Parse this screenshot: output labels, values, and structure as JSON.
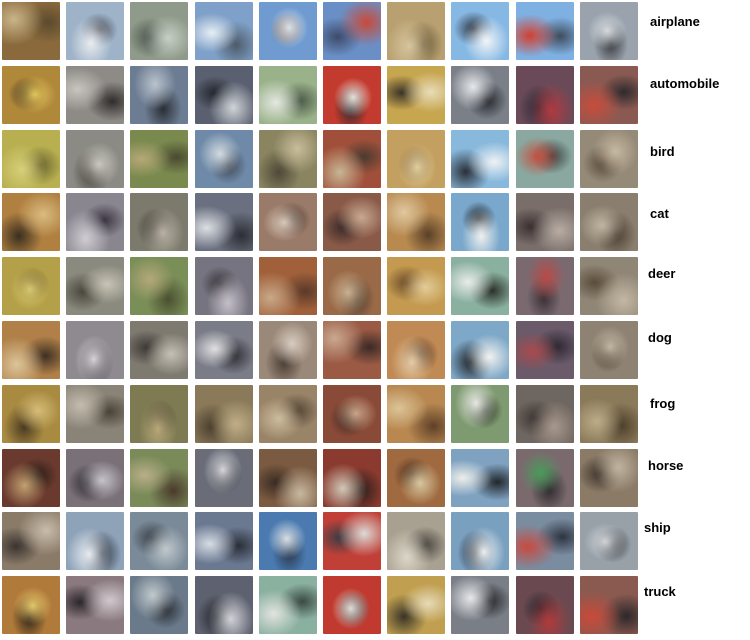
{
  "rows": [
    {
      "class_label": "airplane",
      "tiles": [
        {
          "c1": "#8a6a3c",
          "c2": "#c9b48a",
          "c3": "#5b4a2e"
        },
        {
          "c1": "#9eb2c8",
          "c2": "#e8ecef",
          "c3": "#4c4f58"
        },
        {
          "c1": "#8f9a8a",
          "c2": "#c7cfc6",
          "c3": "#4d5750"
        },
        {
          "c1": "#7fa0c8",
          "c2": "#e6eef4",
          "c3": "#4e5b6a"
        },
        {
          "c1": "#6f9bd0",
          "c2": "#d9e3ec",
          "c3": "#8a5a3a"
        },
        {
          "c1": "#6a8fc6",
          "c2": "#c94a3a",
          "c3": "#3d4a6a"
        },
        {
          "c1": "#b8a070",
          "c2": "#d7c59d",
          "c3": "#6a5a3a"
        },
        {
          "c1": "#86b8e4",
          "c2": "#f2f5f7",
          "c3": "#2f3540"
        },
        {
          "c1": "#7fb0e2",
          "c2": "#d04030",
          "c3": "#3e4c5c"
        },
        {
          "c1": "#9aa3ad",
          "c2": "#d5dadf",
          "c3": "#3a3c40"
        }
      ]
    },
    {
      "class_label": "automobile",
      "tiles": [
        {
          "c1": "#b0883a",
          "c2": "#e2c45a",
          "c3": "#3a2e1e"
        },
        {
          "c1": "#8e8a86",
          "c2": "#c8c4be",
          "c3": "#2f2d2c"
        },
        {
          "c1": "#6c7c92",
          "c2": "#b9c3cd",
          "c3": "#2a2e36"
        },
        {
          "c1": "#5a6070",
          "c2": "#d0d4d8",
          "c3": "#22252c"
        },
        {
          "c1": "#9ab28a",
          "c2": "#e4e7e0",
          "c3": "#4b5a48"
        },
        {
          "c1": "#c33a2e",
          "c2": "#e2e0da",
          "c3": "#2a2c30"
        },
        {
          "c1": "#c7a650",
          "c2": "#e8dcb8",
          "c3": "#3b3428"
        },
        {
          "c1": "#7a7f88",
          "c2": "#e6e8ea",
          "c3": "#24262b"
        },
        {
          "c1": "#6a4a58",
          "c2": "#b23a40",
          "c3": "#2a2a35"
        },
        {
          "c1": "#8a5a52",
          "c2": "#c84c3c",
          "c3": "#2e2a2c"
        }
      ]
    },
    {
      "class_label": "bird",
      "tiles": [
        {
          "c1": "#b8b050",
          "c2": "#d7cf7a",
          "c3": "#6a6430"
        },
        {
          "c1": "#8c8a84",
          "c2": "#c9c7bf",
          "c3": "#4a4640"
        },
        {
          "c1": "#7a8a4e",
          "c2": "#b6a878",
          "c3": "#4a4a30"
        },
        {
          "c1": "#6f8aa8",
          "c2": "#d2dbe2",
          "c3": "#3e4450"
        },
        {
          "c1": "#8a8460",
          "c2": "#c9bd9a",
          "c3": "#4e4838"
        },
        {
          "c1": "#a0503a",
          "c2": "#c7b594",
          "c3": "#4a3a30"
        },
        {
          "c1": "#c4a060",
          "c2": "#e0cfa0",
          "c3": "#7a5a30"
        },
        {
          "c1": "#88b8dc",
          "c2": "#eef2f4",
          "c3": "#2a3038"
        },
        {
          "c1": "#8aa8a0",
          "c2": "#c45040",
          "c3": "#3a4040"
        },
        {
          "c1": "#958a78",
          "c2": "#c6b8a0",
          "c3": "#5a4a3a"
        }
      ]
    },
    {
      "class_label": "cat",
      "tiles": [
        {
          "c1": "#b08040",
          "c2": "#d9bb80",
          "c3": "#3a2e20"
        },
        {
          "c1": "#8a8690",
          "c2": "#d0ccd2",
          "c3": "#3a3440"
        },
        {
          "c1": "#7c7a6c",
          "c2": "#b8b2a4",
          "c3": "#3e3a34"
        },
        {
          "c1": "#6a7080",
          "c2": "#dcdfe3",
          "c3": "#2c2e34"
        },
        {
          "c1": "#9a7a68",
          "c2": "#d8c8b8",
          "c3": "#4a3a34"
        },
        {
          "c1": "#8a5a48",
          "c2": "#c8a890",
          "c3": "#3a2a28"
        },
        {
          "c1": "#b88a50",
          "c2": "#e0c8a0",
          "c3": "#5a4028"
        },
        {
          "c1": "#7aa8cc",
          "c2": "#f0f0ee",
          "c3": "#1e2024"
        },
        {
          "c1": "#7a6e6a",
          "c2": "#b8aca4",
          "c3": "#3a3030"
        },
        {
          "c1": "#8a7e6e",
          "c2": "#c0b4a2",
          "c3": "#4a3e32"
        }
      ]
    },
    {
      "class_label": "deer",
      "tiles": [
        {
          "c1": "#b4a048",
          "c2": "#d8c870",
          "c3": "#6a5a2a"
        },
        {
          "c1": "#8a8a7e",
          "c2": "#c8c4b6",
          "c3": "#4a463e"
        },
        {
          "c1": "#7a8e58",
          "c2": "#b4a878",
          "c3": "#4a5030"
        },
        {
          "c1": "#767480",
          "c2": "#c4bec8",
          "c3": "#3a363c"
        },
        {
          "c1": "#a0603a",
          "c2": "#c8a888",
          "c3": "#5a3a2a"
        },
        {
          "c1": "#9a6a48",
          "c2": "#c9b090",
          "c3": "#4a3a2c"
        },
        {
          "c1": "#c49a50",
          "c2": "#e2cc98",
          "c3": "#6a4a28"
        },
        {
          "c1": "#8ab0a0",
          "c2": "#e8ecea",
          "c3": "#2a3028"
        },
        {
          "c1": "#7a6a70",
          "c2": "#b84a48",
          "c3": "#3a3036"
        },
        {
          "c1": "#908676",
          "c2": "#c4b8a4",
          "c3": "#5a4c3a"
        }
      ]
    },
    {
      "class_label": "dog",
      "tiles": [
        {
          "c1": "#b08048",
          "c2": "#dcc49a",
          "c3": "#3e3024"
        },
        {
          "c1": "#8e8a90",
          "c2": "#d6d2d6",
          "c3": "#34303a"
        },
        {
          "c1": "#7e7a70",
          "c2": "#c4c0b4",
          "c3": "#3c3834"
        },
        {
          "c1": "#7a7c88",
          "c2": "#e0e0e2",
          "c3": "#2c2c32"
        },
        {
          "c1": "#9a8878",
          "c2": "#d8ccc0",
          "c3": "#4a3e36"
        },
        {
          "c1": "#9a5a44",
          "c2": "#caa890",
          "c3": "#3a2a26"
        },
        {
          "c1": "#c08a54",
          "c2": "#e4cca8",
          "c3": "#5a3e2a"
        },
        {
          "c1": "#7ea8c8",
          "c2": "#f2f2f0",
          "c3": "#1e2226"
        },
        {
          "c1": "#6a5a6a",
          "c2": "#a84a4c",
          "c3": "#2e2832"
        },
        {
          "c1": "#8e8272",
          "c2": "#c2b6a4",
          "c3": "#4c4034"
        }
      ]
    },
    {
      "class_label": "frog",
      "tiles": [
        {
          "c1": "#a88a40",
          "c2": "#d4bc78",
          "c3": "#4a3a22"
        },
        {
          "c1": "#8a8478",
          "c2": "#c4bcae",
          "c3": "#4a4238"
        },
        {
          "c1": "#7e7a52",
          "c2": "#b8a87a",
          "c3": "#4a4430"
        },
        {
          "c1": "#8a7a5a",
          "c2": "#c0ae86",
          "c3": "#4a3e2c"
        },
        {
          "c1": "#9a8468",
          "c2": "#cdbc9e",
          "c3": "#524434"
        },
        {
          "c1": "#8a4a38",
          "c2": "#c8a488",
          "c3": "#3e2c24"
        },
        {
          "c1": "#b88850",
          "c2": "#dcc498",
          "c3": "#5e4028"
        },
        {
          "c1": "#7e9a70",
          "c2": "#e6e8e2",
          "c3": "#2a2e24"
        },
        {
          "c1": "#6e6660",
          "c2": "#a8988c",
          "c3": "#3a3432"
        },
        {
          "c1": "#8a7a5a",
          "c2": "#bcac88",
          "c3": "#4c3e2a"
        }
      ]
    },
    {
      "class_label": "horse",
      "tiles": [
        {
          "c1": "#6a3a2e",
          "c2": "#c0a070",
          "c3": "#2a1c18"
        },
        {
          "c1": "#7a7078",
          "c2": "#c8c4cc",
          "c3": "#2e2a30"
        },
        {
          "c1": "#7a8a58",
          "c2": "#b8ae88",
          "c3": "#4a3a2c"
        },
        {
          "c1": "#6a6c78",
          "c2": "#d4d6da",
          "c3": "#2a2c32"
        },
        {
          "c1": "#7a5a40",
          "c2": "#c8b8a0",
          "c3": "#3a2a22"
        },
        {
          "c1": "#8a3a2e",
          "c2": "#d0c8b8",
          "c3": "#2a1e1a"
        },
        {
          "c1": "#a06a40",
          "c2": "#d8c8a0",
          "c3": "#4a3020"
        },
        {
          "c1": "#7ea2c0",
          "c2": "#eeeeea",
          "c3": "#22262a"
        },
        {
          "c1": "#7a6a6e",
          "c2": "#4a9a5a",
          "c3": "#2e2a2e"
        },
        {
          "c1": "#8a7a66",
          "c2": "#c0b4a0",
          "c3": "#3e342c"
        }
      ]
    },
    {
      "class_label": "ship",
      "tiles": [
        {
          "c1": "#8a7a68",
          "c2": "#c8bcaa",
          "c3": "#3a3430"
        },
        {
          "c1": "#8ea2b8",
          "c2": "#e8ecf0",
          "c3": "#2e3440"
        },
        {
          "c1": "#7a8a98",
          "c2": "#c0c8cc",
          "c3": "#3a4048"
        },
        {
          "c1": "#6a7890",
          "c2": "#d6dce4",
          "c3": "#2a2e38"
        },
        {
          "c1": "#4a7ab0",
          "c2": "#d8dee4",
          "c3": "#2a3a50"
        },
        {
          "c1": "#c04038",
          "c2": "#dcdad6",
          "c3": "#3a3c44"
        },
        {
          "c1": "#a8a090",
          "c2": "#dcd6c8",
          "c3": "#4a4640"
        },
        {
          "c1": "#7aa0c0",
          "c2": "#eaeef0",
          "c3": "#24282e"
        },
        {
          "c1": "#7a8ca0",
          "c2": "#c84a40",
          "c3": "#2e3440"
        },
        {
          "c1": "#98a0a8",
          "c2": "#d0d4d8",
          "c3": "#3a3c40"
        }
      ]
    },
    {
      "class_label": "truck",
      "tiles": [
        {
          "c1": "#b07a3a",
          "c2": "#e2c66a",
          "c3": "#2e2418"
        },
        {
          "c1": "#8a7a80",
          "c2": "#d0c8cc",
          "c3": "#2c262a"
        },
        {
          "c1": "#6a7a8a",
          "c2": "#c0c8cc",
          "c3": "#2a2e34"
        },
        {
          "c1": "#5e6270",
          "c2": "#d2d4d8",
          "c3": "#22242a"
        },
        {
          "c1": "#8ab0a0",
          "c2": "#e2e4e0",
          "c3": "#3a4a44"
        },
        {
          "c1": "#c03a30",
          "c2": "#e0ddd6",
          "c3": "#2a2c30"
        },
        {
          "c1": "#c0a050",
          "c2": "#e6dab8",
          "c3": "#3a3428"
        },
        {
          "c1": "#7a7e86",
          "c2": "#e6e8ea",
          "c3": "#222428"
        },
        {
          "c1": "#6a4a50",
          "c2": "#b03a3c",
          "c3": "#28262e"
        },
        {
          "c1": "#8a5a50",
          "c2": "#c84a3a",
          "c3": "#2c282a"
        }
      ]
    }
  ]
}
